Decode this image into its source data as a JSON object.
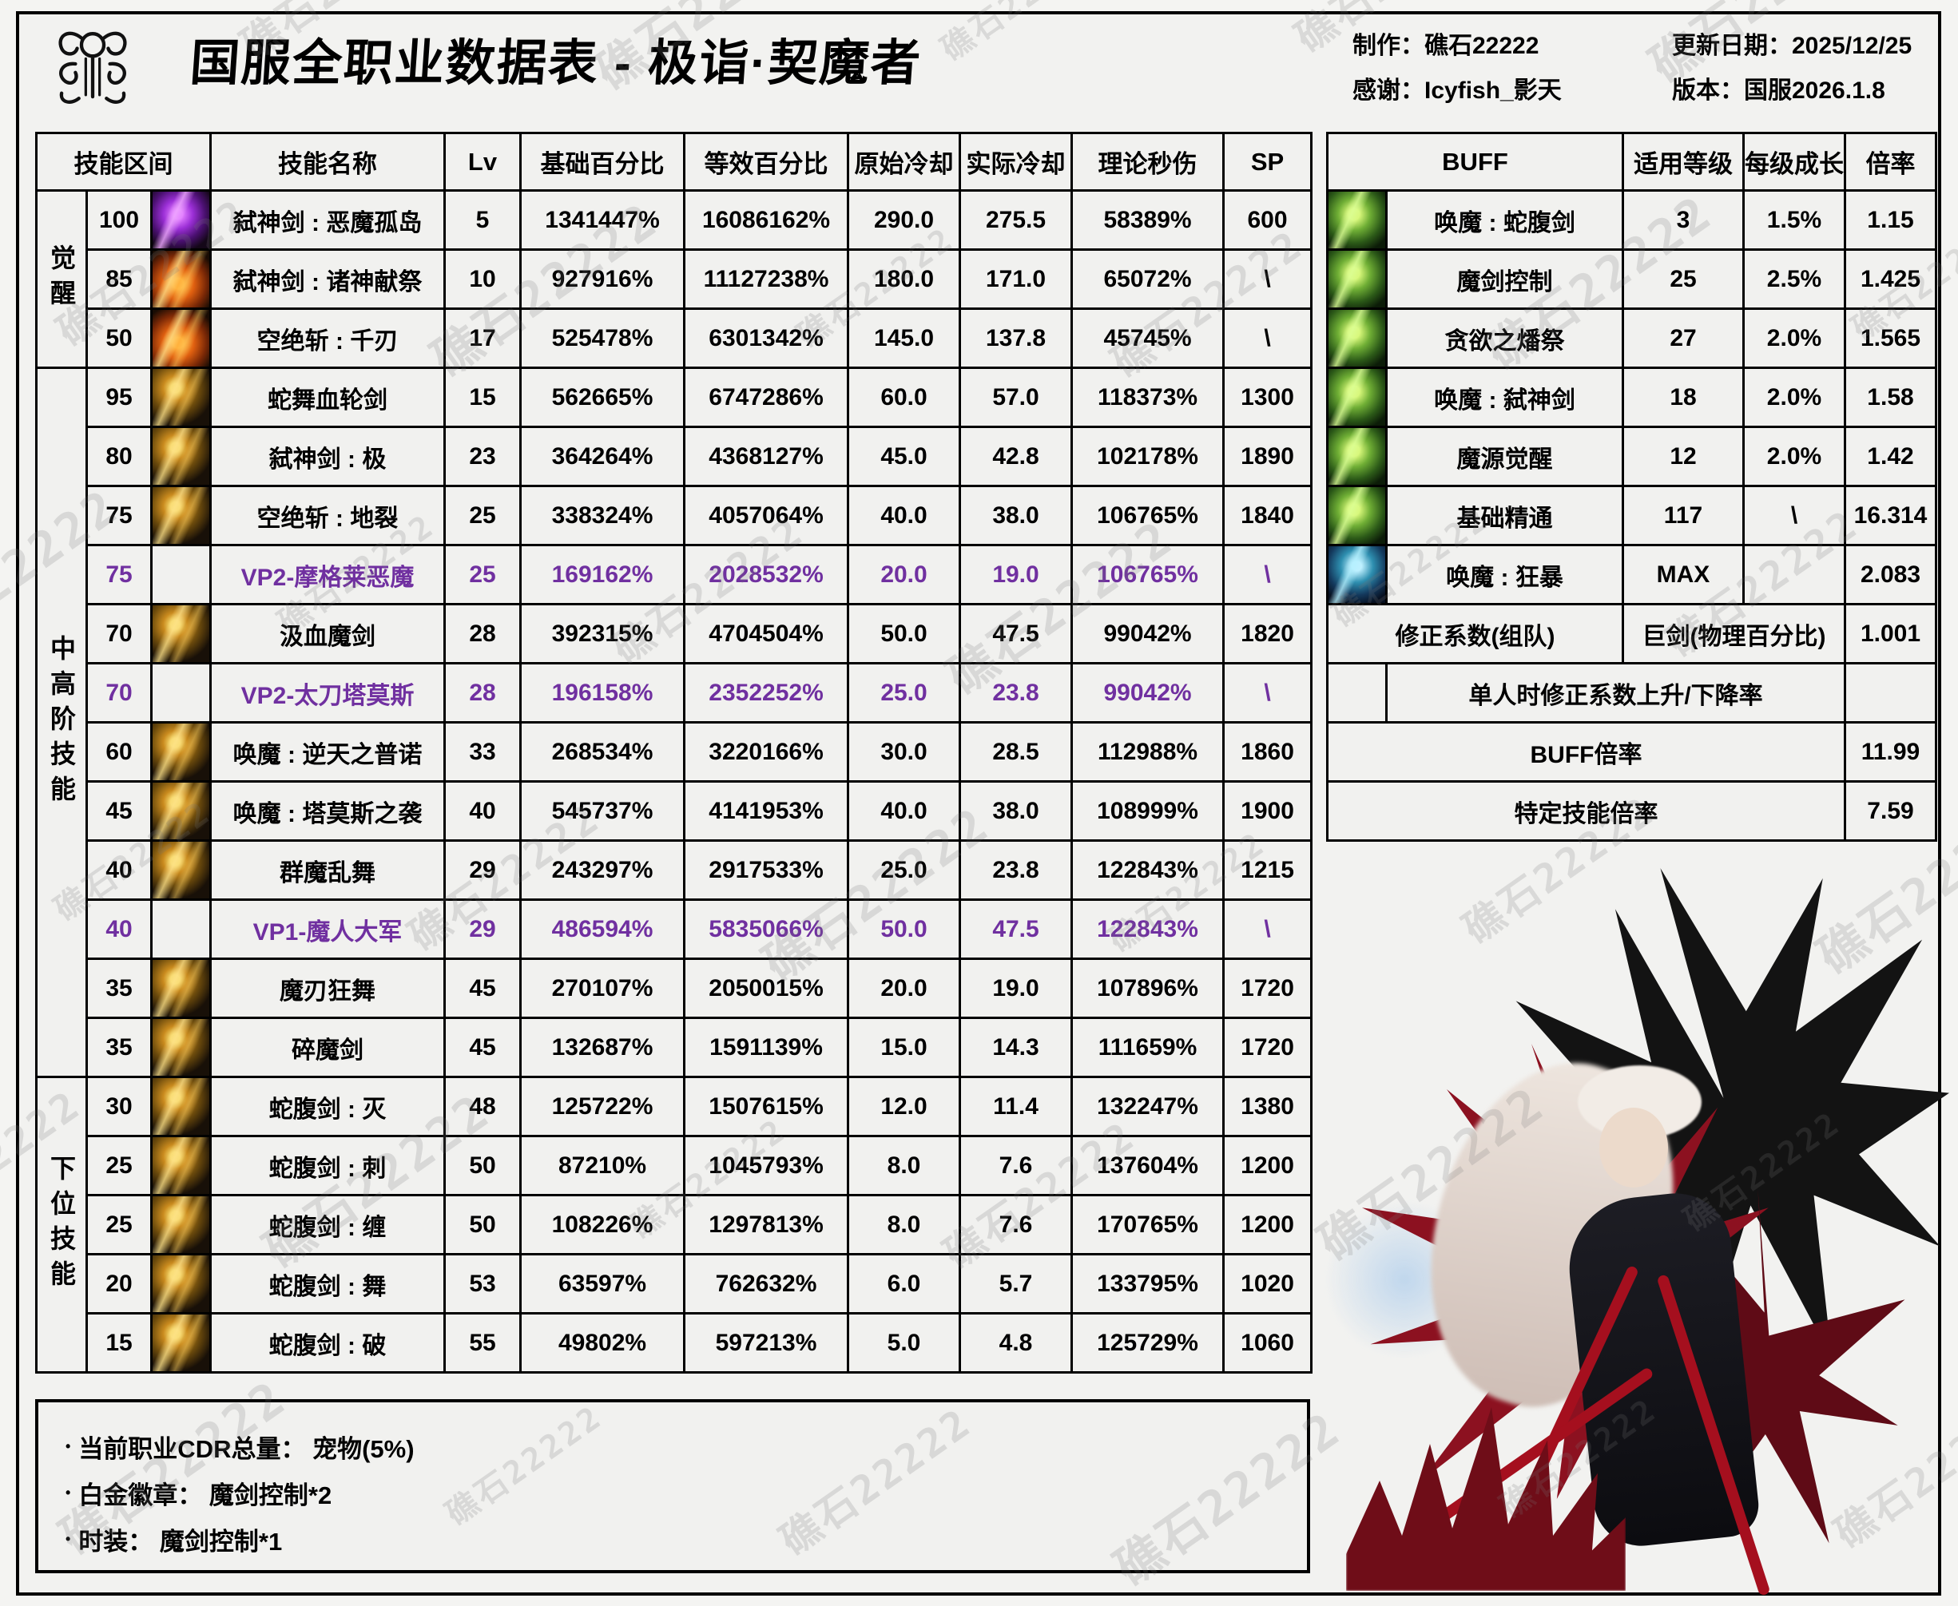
{
  "header": {
    "title": "国服全职业数据表 - 极诣·契魔者",
    "credits": [
      "制作：礁石22222",
      "感谢：Icyfish_影天"
    ],
    "meta": [
      "更新日期：2025/12/25",
      "版本：国服2026.1.8"
    ]
  },
  "watermark": "礁石22222",
  "colors": {
    "vp_text": "#7030a0",
    "border": "#000000",
    "background": "#f2f2f0"
  },
  "skill_table": {
    "headers": [
      "技能区间",
      "技能名称",
      "Lv",
      "基础百分比",
      "等效百分比",
      "原始冷却",
      "实际冷却",
      "理论秒伤",
      "SP"
    ],
    "groups": [
      {
        "label": "觉醒",
        "rows": 3
      },
      {
        "label": "中高阶技能",
        "rows": 12
      },
      {
        "label": "下位技能",
        "rows": 5
      }
    ],
    "rows": [
      {
        "interval": "100",
        "icon": "purple",
        "name": "弑神剑 : 恶魔孤岛",
        "lv": "5",
        "base": "1341447%",
        "eq": "16086162%",
        "cd": "290.0",
        "rcd": "275.5",
        "dps": "58389%",
        "sp": "600",
        "vp": false
      },
      {
        "interval": "85",
        "icon": "flame",
        "name": "弑神剑 : 诸神献祭",
        "lv": "10",
        "base": "927916%",
        "eq": "11127238%",
        "cd": "180.0",
        "rcd": "171.0",
        "dps": "65072%",
        "sp": "\\",
        "vp": false
      },
      {
        "interval": "50",
        "icon": "flame",
        "name": "空绝斩 : 千刃",
        "lv": "17",
        "base": "525478%",
        "eq": "6301342%",
        "cd": "145.0",
        "rcd": "137.8",
        "dps": "45745%",
        "sp": "\\",
        "vp": false
      },
      {
        "interval": "95",
        "icon": "gold",
        "name": "蛇舞血轮剑",
        "lv": "15",
        "base": "562665%",
        "eq": "6747286%",
        "cd": "60.0",
        "rcd": "57.0",
        "dps": "118373%",
        "sp": "1300",
        "vp": false
      },
      {
        "interval": "80",
        "icon": "gold",
        "name": "弑神剑 : 极",
        "lv": "23",
        "base": "364264%",
        "eq": "4368127%",
        "cd": "45.0",
        "rcd": "42.8",
        "dps": "102178%",
        "sp": "1890",
        "vp": false
      },
      {
        "interval": "75",
        "icon": "gold",
        "name": "空绝斩 : 地裂",
        "lv": "25",
        "base": "338324%",
        "eq": "4057064%",
        "cd": "40.0",
        "rcd": "38.0",
        "dps": "106765%",
        "sp": "1840",
        "vp": false
      },
      {
        "interval": "75",
        "icon": "none",
        "name": "VP2-摩格莱恶魔",
        "lv": "25",
        "base": "169162%",
        "eq": "2028532%",
        "cd": "20.0",
        "rcd": "19.0",
        "dps": "106765%",
        "sp": "\\",
        "vp": true
      },
      {
        "interval": "70",
        "icon": "gold",
        "name": "汲血魔剑",
        "lv": "28",
        "base": "392315%",
        "eq": "4704504%",
        "cd": "50.0",
        "rcd": "47.5",
        "dps": "99042%",
        "sp": "1820",
        "vp": false
      },
      {
        "interval": "70",
        "icon": "none",
        "name": "VP2-太刀塔莫斯",
        "lv": "28",
        "base": "196158%",
        "eq": "2352252%",
        "cd": "25.0",
        "rcd": "23.8",
        "dps": "99042%",
        "sp": "\\",
        "vp": true
      },
      {
        "interval": "60",
        "icon": "gold",
        "name": "唤魔 : 逆天之普诺",
        "lv": "33",
        "base": "268534%",
        "eq": "3220166%",
        "cd": "30.0",
        "rcd": "28.5",
        "dps": "112988%",
        "sp": "1860",
        "vp": false
      },
      {
        "interval": "45",
        "icon": "gold",
        "name": "唤魔 : 塔莫斯之袭",
        "lv": "40",
        "base": "545737%",
        "eq": "4141953%",
        "cd": "40.0",
        "rcd": "38.0",
        "dps": "108999%",
        "sp": "1900",
        "vp": false
      },
      {
        "interval": "40",
        "icon": "gold",
        "name": "群魔乱舞",
        "lv": "29",
        "base": "243297%",
        "eq": "2917533%",
        "cd": "25.0",
        "rcd": "23.8",
        "dps": "122843%",
        "sp": "1215",
        "vp": false
      },
      {
        "interval": "40",
        "icon": "none",
        "name": "VP1-魔人大军",
        "lv": "29",
        "base": "486594%",
        "eq": "5835066%",
        "cd": "50.0",
        "rcd": "47.5",
        "dps": "122843%",
        "sp": "\\",
        "vp": true
      },
      {
        "interval": "35",
        "icon": "gold",
        "name": "魔刃狂舞",
        "lv": "45",
        "base": "270107%",
        "eq": "2050015%",
        "cd": "20.0",
        "rcd": "19.0",
        "dps": "107896%",
        "sp": "1720",
        "vp": false
      },
      {
        "interval": "35",
        "icon": "gold",
        "name": "碎魔剑",
        "lv": "45",
        "base": "132687%",
        "eq": "1591139%",
        "cd": "15.0",
        "rcd": "14.3",
        "dps": "111659%",
        "sp": "1720",
        "vp": false
      },
      {
        "interval": "30",
        "icon": "gold",
        "name": "蛇腹剑 : 灭",
        "lv": "48",
        "base": "125722%",
        "eq": "1507615%",
        "cd": "12.0",
        "rcd": "11.4",
        "dps": "132247%",
        "sp": "1380",
        "vp": false
      },
      {
        "interval": "25",
        "icon": "gold",
        "name": "蛇腹剑 : 刺",
        "lv": "50",
        "base": "87210%",
        "eq": "1045793%",
        "cd": "8.0",
        "rcd": "7.6",
        "dps": "137604%",
        "sp": "1200",
        "vp": false
      },
      {
        "interval": "25",
        "icon": "gold",
        "name": "蛇腹剑 : 缠",
        "lv": "50",
        "base": "108226%",
        "eq": "1297813%",
        "cd": "8.0",
        "rcd": "7.6",
        "dps": "170765%",
        "sp": "1200",
        "vp": false
      },
      {
        "interval": "20",
        "icon": "gold",
        "name": "蛇腹剑 : 舞",
        "lv": "53",
        "base": "63597%",
        "eq": "762632%",
        "cd": "6.0",
        "rcd": "5.7",
        "dps": "133795%",
        "sp": "1020",
        "vp": false
      },
      {
        "interval": "15",
        "icon": "gold",
        "name": "蛇腹剑 : 破",
        "lv": "55",
        "base": "49802%",
        "eq": "597213%",
        "cd": "5.0",
        "rcd": "4.8",
        "dps": "125729%",
        "sp": "1060",
        "vp": false
      }
    ]
  },
  "buff_table": {
    "headers": [
      "BUFF",
      "适用等级",
      "每级成长",
      "倍率"
    ],
    "rows": [
      {
        "layout": "normal",
        "icon": "green",
        "name": "唤魔 : 蛇腹剑",
        "level": "3",
        "growth": "1.5%",
        "rate": "1.15"
      },
      {
        "layout": "normal",
        "icon": "green",
        "name": "魔剑控制",
        "level": "25",
        "growth": "2.5%",
        "rate": "1.425"
      },
      {
        "layout": "normal",
        "icon": "green",
        "name": "贪欲之燔祭",
        "level": "27",
        "growth": "2.0%",
        "rate": "1.565"
      },
      {
        "layout": "normal",
        "icon": "green",
        "name": "唤魔 : 弑神剑",
        "level": "18",
        "growth": "2.0%",
        "rate": "1.58"
      },
      {
        "layout": "normal",
        "icon": "green",
        "name": "魔源觉醒",
        "level": "12",
        "growth": "2.0%",
        "rate": "1.42"
      },
      {
        "layout": "normal",
        "icon": "green",
        "name": "基础精通",
        "level": "117",
        "growth": "\\",
        "rate": "16.314"
      },
      {
        "layout": "normal",
        "icon": "teal",
        "name": "唤魔 : 狂暴",
        "level": "MAX",
        "growth": "",
        "rate": "2.083"
      },
      {
        "layout": "merge2",
        "icon": "none",
        "name": "修正系数(组队)",
        "mid": "巨剑(物理百分比)",
        "rate": "1.001"
      },
      {
        "layout": "merge3",
        "icon": "none",
        "name": "单人时修正系数上升/下降率",
        "rate": ""
      },
      {
        "layout": "merge4",
        "icon": "none",
        "name": "BUFF倍率",
        "rate": "11.99"
      },
      {
        "layout": "merge4",
        "icon": "none",
        "name": "特定技能倍率",
        "rate": "7.59"
      }
    ]
  },
  "notes": {
    "bullet": "•",
    "items": [
      "当前职业CDR总量： 宠物(5%)",
      "白金徽章： 魔剑控制*2",
      "时装： 魔剑控制*1"
    ]
  }
}
